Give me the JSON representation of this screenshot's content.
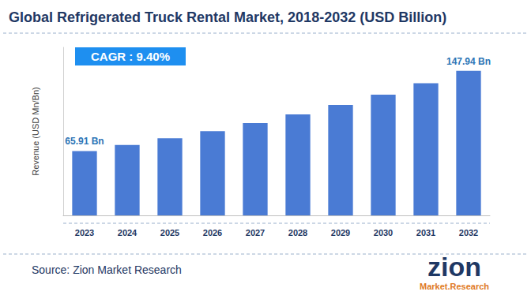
{
  "chart_data": {
    "type": "bar",
    "title": "Global Refrigerated Truck Rental Market, 2018-2032 (USD Billion)",
    "y_label": "Revenue (USD Mn/Bn)",
    "categories": [
      "2023",
      "2024",
      "2025",
      "2026",
      "2027",
      "2028",
      "2029",
      "2030",
      "2031",
      "2032"
    ],
    "values": [
      65.91,
      72.1,
      78.9,
      86.3,
      94.4,
      103.3,
      113.0,
      123.6,
      135.2,
      147.94
    ],
    "value_labels": [
      "65.91 Bn",
      null,
      null,
      null,
      null,
      null,
      null,
      null,
      null,
      "147.94 Bn"
    ],
    "color": "#4a7bd4",
    "ylim": [
      0,
      172
    ],
    "grid": false,
    "tick_labels": "x",
    "annotations": [
      "CAGR : 9.40%"
    ],
    "source": "Source: Zion Market Research",
    "logo": [
      "zion",
      "Market.Research"
    ]
  }
}
